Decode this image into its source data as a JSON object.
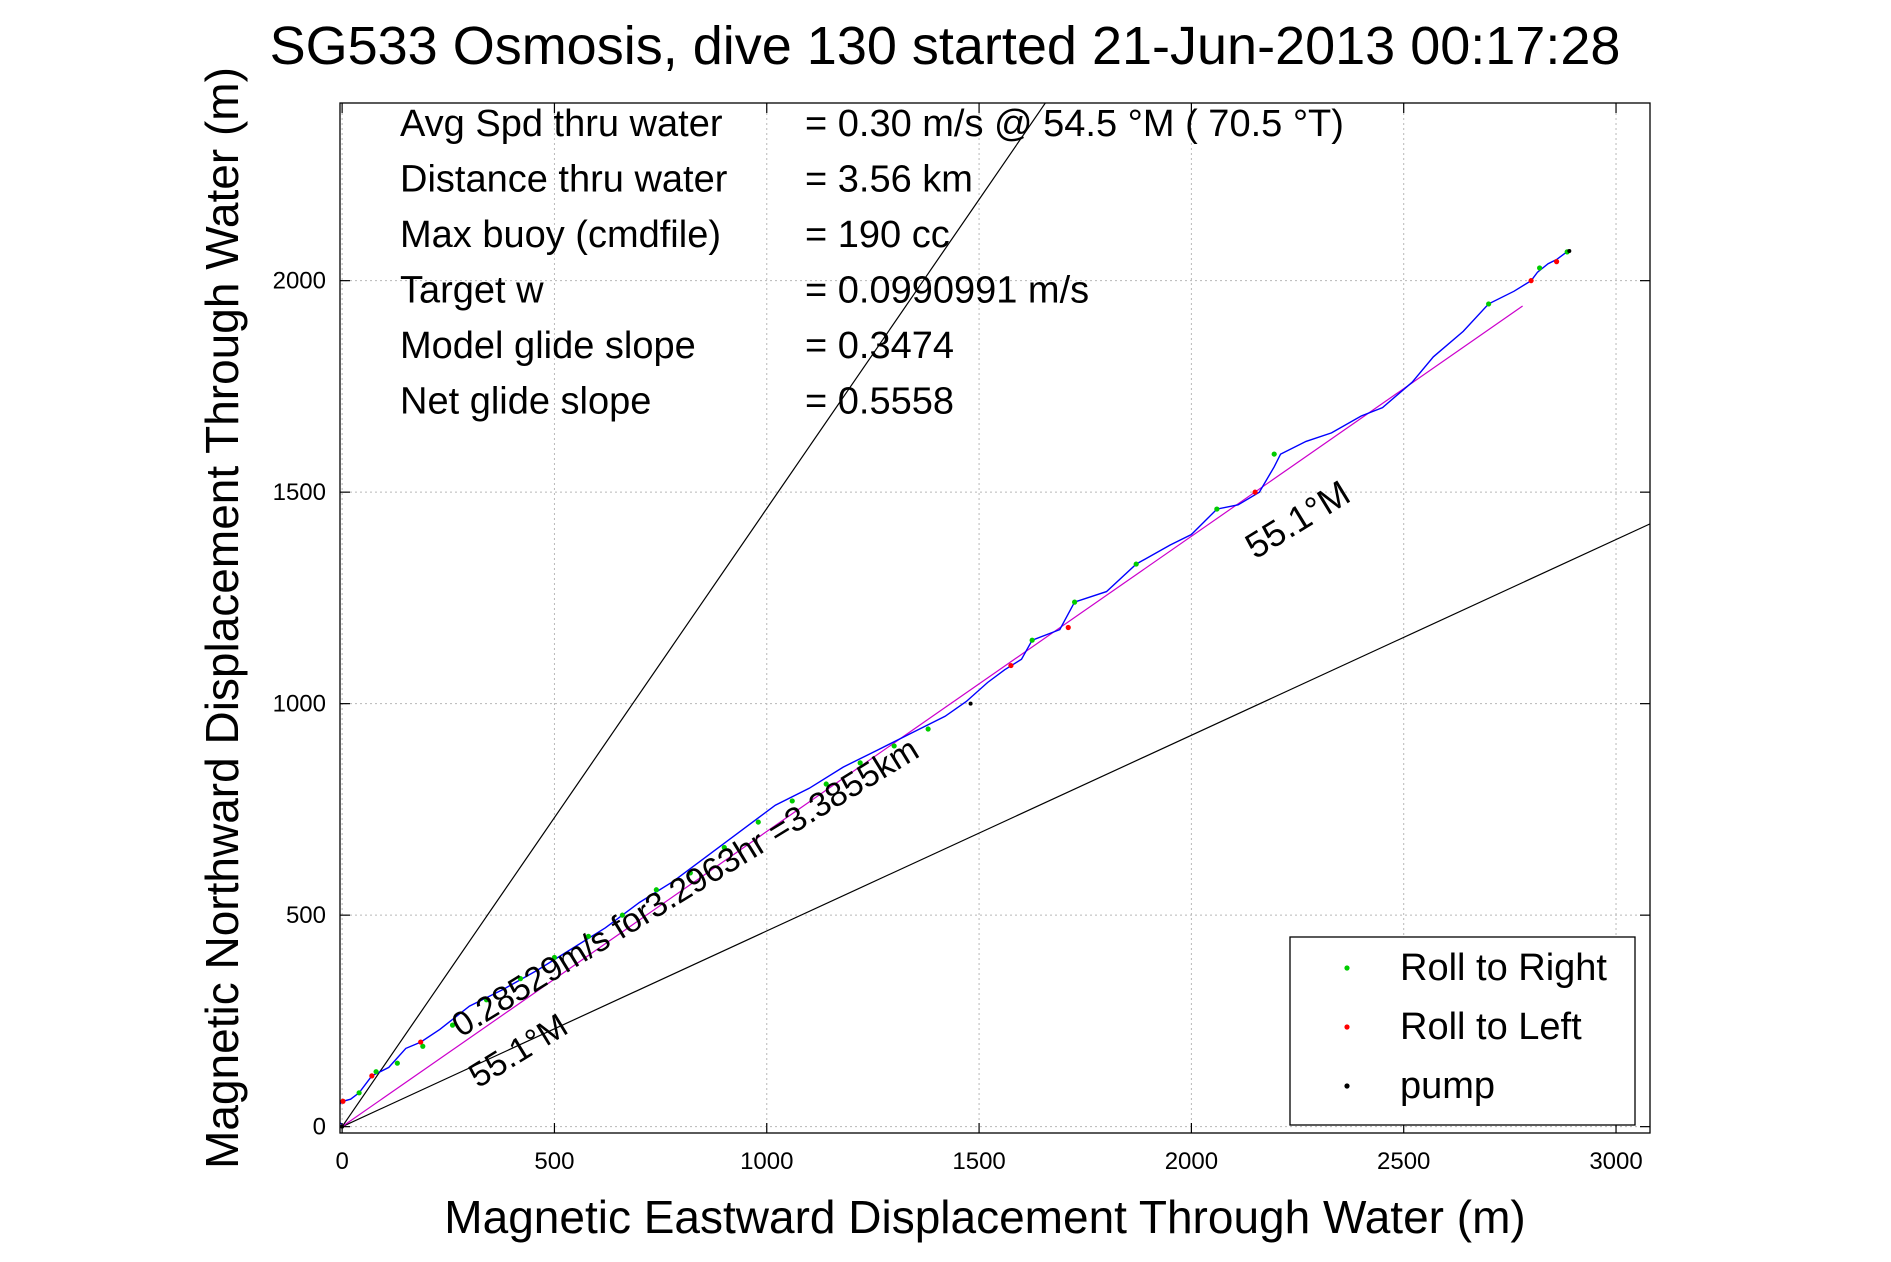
{
  "chart_data": {
    "type": "scatter",
    "title": "SG533 Osmosis, dive 130 started 21-Jun-2013 00:17:28",
    "xlabel": "Magnetic Eastward Displacement Through Water (m)",
    "ylabel": "Magnetic Northward Displacement Through Water (m)",
    "xlim": [
      -5,
      3080
    ],
    "ylim": [
      -15,
      2420
    ],
    "xticks": [
      0,
      500,
      1000,
      1500,
      2000,
      2500,
      3000
    ],
    "yticks": [
      0,
      500,
      1000,
      1500,
      2000
    ],
    "xtick_labels": [
      "0",
      "500",
      "1000",
      "1500",
      "2000",
      "2500",
      "3000"
    ],
    "ytick_labels": [
      "0",
      "500",
      "1000",
      "1500",
      "2000"
    ],
    "grid": true,
    "legend_position": "bottom-right",
    "legend": [
      {
        "label": "Roll to Right",
        "color": "#00cc00"
      },
      {
        "label": "Roll to Left",
        "color": "#ff0000"
      },
      {
        "label": "pump",
        "color": "#000000"
      }
    ],
    "stats": [
      {
        "label": "Avg Spd thru water",
        "value": "=  0.30 m/s @  54.5 °M ( 70.5 °T)"
      },
      {
        "label": "Distance thru water",
        "value": "=  3.56 km"
      },
      {
        "label": "Max buoy (cmdfile)",
        "value": "= 190 cc"
      },
      {
        "label": "Target w",
        "value": "= 0.0990991 m/s"
      },
      {
        "label": "Model glide slope",
        "value": "= 0.3474"
      },
      {
        "label": "Net glide slope",
        "value": "= 0.5558"
      }
    ],
    "annotations": [
      {
        "text": "0.28529m/s for3.2963hr =3.3855km",
        "x": 280,
        "y": 210
      },
      {
        "text": "55.1°M",
        "x": 320,
        "y": 90
      },
      {
        "text": "55.1°M",
        "x": 2150,
        "y": 1340
      }
    ],
    "reference_lines": [
      {
        "name": "upper bound",
        "x": [
          0,
          3100
        ],
        "y": [
          0,
          4530
        ],
        "color": "#000000"
      },
      {
        "name": "lower bound",
        "x": [
          0,
          3080
        ],
        "y": [
          0,
          1425
        ],
        "color": "#000000"
      },
      {
        "name": "heading 55.1 M",
        "x": [
          0,
          2780
        ],
        "y": [
          0,
          1940
        ],
        "color": "#cc00cc"
      }
    ],
    "track": {
      "name": "track",
      "color": "#0000ff",
      "x": [
        0,
        -12,
        -16,
        -12,
        -4,
        2,
        20,
        40,
        70,
        110,
        150,
        185,
        230,
        300,
        380,
        460,
        540,
        620,
        700,
        780,
        860,
        940,
        1020,
        1100,
        1180,
        1260,
        1340,
        1420,
        1470,
        1520,
        1560,
        1600,
        1625,
        1690,
        1725,
        1800,
        1870,
        1950,
        2000,
        2060,
        2110,
        2160,
        2195,
        2210,
        2270,
        2330,
        2400,
        2450,
        2520,
        2570,
        2640,
        2700,
        2760,
        2800,
        2815,
        2840,
        2860,
        2880,
        2890
      ],
      "y": [
        5,
        15,
        30,
        45,
        55,
        60,
        65,
        80,
        120,
        140,
        185,
        200,
        230,
        285,
        325,
        370,
        420,
        470,
        530,
        580,
        640,
        700,
        760,
        800,
        850,
        890,
        930,
        970,
        1005,
        1050,
        1080,
        1105,
        1150,
        1175,
        1240,
        1265,
        1330,
        1375,
        1400,
        1460,
        1470,
        1500,
        1560,
        1590,
        1620,
        1640,
        1680,
        1700,
        1760,
        1820,
        1880,
        1945,
        1975,
        2000,
        2020,
        2040,
        2050,
        2065,
        2070
      ]
    },
    "roll_right": {
      "x": [
        40,
        80,
        130,
        190,
        260,
        340,
        420,
        500,
        580,
        660,
        740,
        820,
        900,
        980,
        1060,
        1140,
        1220,
        1300,
        1380,
        1625,
        1725,
        1870,
        2060,
        2195,
        2700,
        2820,
        2885
      ],
      "y": [
        80,
        130,
        150,
        190,
        240,
        300,
        350,
        400,
        450,
        500,
        560,
        600,
        660,
        720,
        770,
        810,
        860,
        900,
        940,
        1150,
        1240,
        1330,
        1460,
        1590,
        1945,
        2030,
        2068
      ]
    },
    "roll_left": {
      "x": [
        -12,
        -14,
        -10,
        2,
        70,
        185,
        1575,
        1710,
        2150,
        2800,
        2860
      ],
      "y": [
        20,
        35,
        50,
        60,
        120,
        200,
        1090,
        1180,
        1500,
        2000,
        2045
      ]
    },
    "pump": {
      "x": [
        0,
        1480,
        2890
      ],
      "y": [
        0,
        1000,
        2070
      ]
    }
  }
}
